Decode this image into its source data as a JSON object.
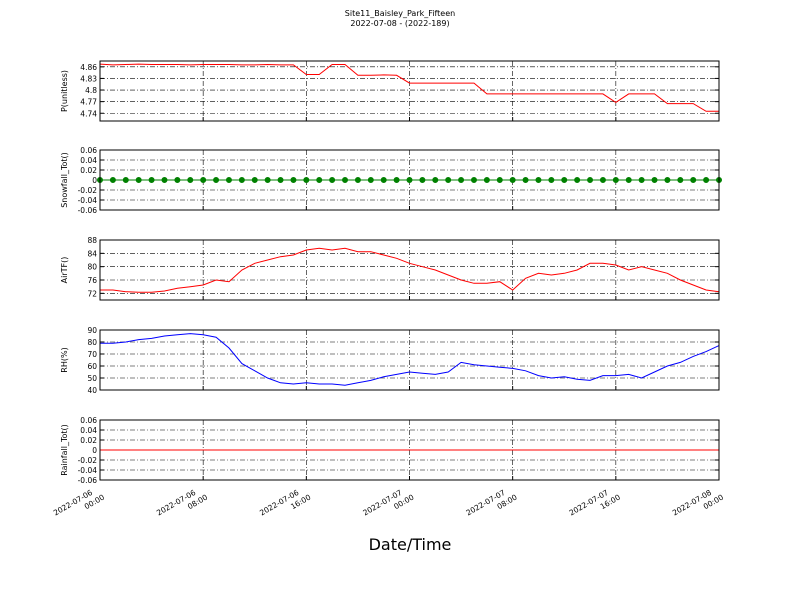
{
  "figure": {
    "title": "Site11_Baisley_Park_Fifteen",
    "subtitle": "2022-07-08 - (2022-189)",
    "xlabel": "Date/Time",
    "xlim": [
      "2022-07-06 00:00",
      "2022-07-08 00:00"
    ],
    "xticks": [
      "2022-07-06 00:00",
      "2022-07-06 08:00",
      "2022-07-06 16:00",
      "2022-07-07 00:00",
      "2022-07-07 08:00",
      "2022-07-07 16:00",
      "2022-07-08 00:00"
    ],
    "x": [
      "2022-07-06 00:00",
      "2022-07-06 01:00",
      "2022-07-06 02:00",
      "2022-07-06 03:00",
      "2022-07-06 04:00",
      "2022-07-06 05:00",
      "2022-07-06 06:00",
      "2022-07-06 07:00",
      "2022-07-06 08:00",
      "2022-07-06 09:00",
      "2022-07-06 10:00",
      "2022-07-06 11:00",
      "2022-07-06 12:00",
      "2022-07-06 13:00",
      "2022-07-06 14:00",
      "2022-07-06 15:00",
      "2022-07-06 16:00",
      "2022-07-06 17:00",
      "2022-07-06 18:00",
      "2022-07-06 19:00",
      "2022-07-06 20:00",
      "2022-07-06 21:00",
      "2022-07-06 22:00",
      "2022-07-06 23:00",
      "2022-07-07 00:00",
      "2022-07-07 01:00",
      "2022-07-07 02:00",
      "2022-07-07 03:00",
      "2022-07-07 04:00",
      "2022-07-07 05:00",
      "2022-07-07 06:00",
      "2022-07-07 07:00",
      "2022-07-07 08:00",
      "2022-07-07 09:00",
      "2022-07-07 10:00",
      "2022-07-07 11:00",
      "2022-07-07 12:00",
      "2022-07-07 13:00",
      "2022-07-07 14:00",
      "2022-07-07 15:00",
      "2022-07-07 16:00",
      "2022-07-07 17:00",
      "2022-07-07 18:00",
      "2022-07-07 19:00",
      "2022-07-07 20:00",
      "2022-07-07 21:00",
      "2022-07-07 22:00",
      "2022-07-07 23:00",
      "2022-07-08 00:00"
    ]
  },
  "chart_data": [
    {
      "type": "line",
      "ylabel": "P(unitless)",
      "ylim": [
        4.72,
        4.875
      ],
      "yticks": [
        4.74,
        4.77,
        4.8,
        4.83,
        4.86
      ],
      "grid": true,
      "series": [
        {
          "color": "#ff0000",
          "marker": false,
          "values": [
            4.867,
            4.865,
            4.866,
            4.867,
            4.866,
            4.866,
            4.866,
            4.865,
            4.866,
            4.866,
            4.866,
            4.865,
            4.865,
            4.866,
            4.865,
            4.865,
            4.84,
            4.84,
            4.866,
            4.866,
            4.838,
            4.838,
            4.839,
            4.838,
            4.818,
            4.818,
            4.818,
            4.818,
            4.818,
            4.818,
            4.79,
            4.79,
            4.79,
            4.79,
            4.79,
            4.79,
            4.79,
            4.79,
            4.79,
            4.79,
            4.768,
            4.79,
            4.79,
            4.79,
            4.765,
            4.765,
            4.765,
            4.745,
            4.745
          ]
        }
      ]
    },
    {
      "type": "line",
      "ylabel": "Snowfall_Tot()",
      "ylim": [
        -0.06,
        0.06
      ],
      "yticks": [
        -0.06,
        -0.04,
        -0.02,
        0.0,
        0.02,
        0.04,
        0.06
      ],
      "grid": true,
      "series": [
        {
          "color": "#008000",
          "marker": true,
          "values": [
            0,
            0,
            0,
            0,
            0,
            0,
            0,
            0,
            0,
            0,
            0,
            0,
            0,
            0,
            0,
            0,
            0,
            0,
            0,
            0,
            0,
            0,
            0,
            0,
            0,
            0,
            0,
            0,
            0,
            0,
            0,
            0,
            0,
            0,
            0,
            0,
            0,
            0,
            0,
            0,
            0,
            0,
            0,
            0,
            0,
            0,
            0,
            0,
            0
          ]
        }
      ]
    },
    {
      "type": "line",
      "ylabel": "AirTF()",
      "ylim": [
        70,
        88
      ],
      "yticks": [
        72,
        76,
        80,
        84,
        88
      ],
      "grid": true,
      "series": [
        {
          "color": "#ff0000",
          "marker": false,
          "values": [
            73,
            73,
            72.5,
            72.3,
            72.3,
            72.7,
            73.5,
            74,
            74.5,
            76,
            75.5,
            79,
            81,
            82,
            83,
            83.5,
            85,
            85.5,
            85,
            85.5,
            84.5,
            84.5,
            83.5,
            82.5,
            81,
            80,
            79,
            77.5,
            76,
            75,
            75,
            75.5,
            73,
            76.5,
            78,
            77.5,
            78,
            79,
            81,
            81,
            80.5,
            79,
            80,
            79,
            78,
            76,
            74.5,
            73,
            72.5
          ]
        }
      ]
    },
    {
      "type": "line",
      "ylabel": "RH(%)",
      "ylim": [
        40,
        90
      ],
      "yticks": [
        40,
        50,
        60,
        70,
        80,
        90
      ],
      "grid": true,
      "series": [
        {
          "color": "#0000ff",
          "marker": false,
          "values": [
            79,
            79,
            80,
            82,
            83,
            85,
            86,
            87,
            86,
            84,
            75,
            62,
            56,
            50,
            46,
            45,
            46,
            45,
            45,
            44,
            46,
            48,
            51,
            53,
            55,
            54,
            53,
            55,
            63,
            61,
            60,
            59,
            58,
            56,
            52,
            50,
            51,
            49,
            48,
            52,
            52,
            53,
            50,
            55,
            60,
            63,
            68,
            72,
            77
          ]
        }
      ]
    },
    {
      "type": "line",
      "ylabel": "Rainfall_Tot()",
      "ylim": [
        -0.06,
        0.06
      ],
      "yticks": [
        -0.06,
        -0.04,
        -0.02,
        0.0,
        0.02,
        0.04,
        0.06
      ],
      "grid": true,
      "series": [
        {
          "color": "#ff0000",
          "marker": false,
          "values": [
            0,
            0,
            0,
            0,
            0,
            0,
            0,
            0,
            0,
            0,
            0,
            0,
            0,
            0,
            0,
            0,
            0,
            0,
            0,
            0,
            0,
            0,
            0,
            0,
            0,
            0,
            0,
            0,
            0,
            0,
            0,
            0,
            0,
            0,
            0,
            0,
            0,
            0,
            0,
            0,
            0,
            0,
            0,
            0,
            0,
            0,
            0,
            0,
            0
          ]
        }
      ]
    }
  ]
}
